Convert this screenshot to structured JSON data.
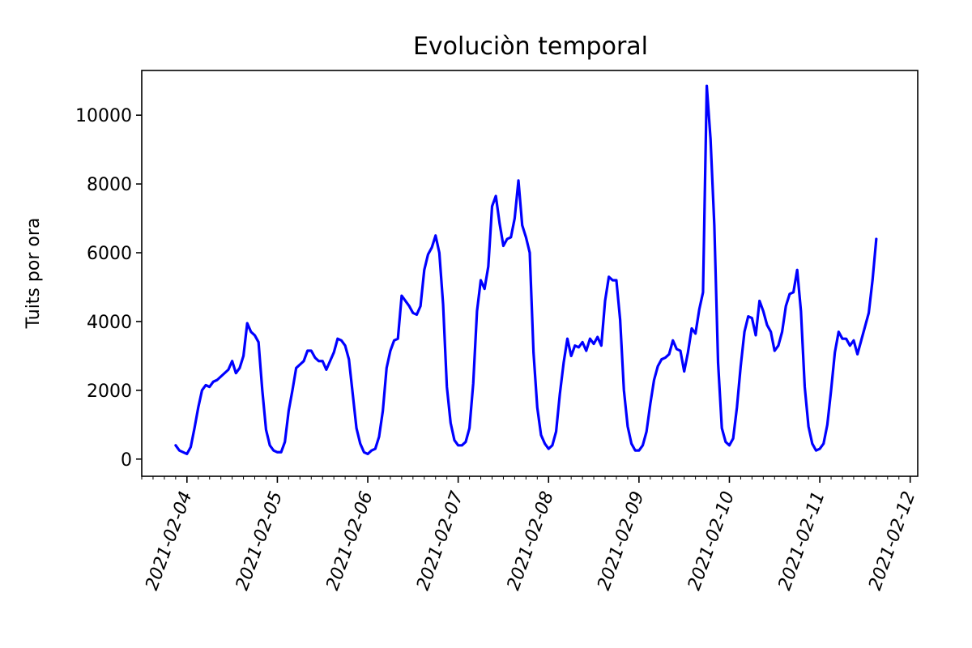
{
  "chart_data": {
    "type": "line",
    "title": "Evoluciòn temporal",
    "xlabel": "",
    "ylabel": "Tuits por ora",
    "x_start": "2021-02-03T21:00",
    "x_step_hours": 1,
    "xlim": [
      "2021-02-03T12:00",
      "2021-02-12T02:00"
    ],
    "ylim": [
      -500,
      11300
    ],
    "x_ticks": [
      "2021-02-04",
      "2021-02-05",
      "2021-02-06",
      "2021-02-07",
      "2021-02-08",
      "2021-02-09",
      "2021-02-10",
      "2021-02-11",
      "2021-02-12"
    ],
    "y_ticks": [
      0,
      2000,
      4000,
      6000,
      8000,
      10000
    ],
    "grid": false,
    "line_color": "#0000ff",
    "series": [
      {
        "values": [
          400,
          250,
          200,
          150,
          350,
          900,
          1500,
          2000,
          2150,
          2100,
          2250,
          2300,
          2400,
          2500,
          2600,
          2850,
          2500,
          2650,
          3000,
          3950,
          3700,
          3600,
          3400,
          2000,
          850,
          400,
          250,
          200,
          200,
          500,
          1400,
          2000,
          2650,
          2750,
          2850,
          3150,
          3150,
          2950,
          2850,
          2850,
          2600,
          2850,
          3100,
          3500,
          3450,
          3300,
          2900,
          1900,
          900,
          450,
          200,
          150,
          250,
          300,
          650,
          1400,
          2650,
          3150,
          3450,
          3500,
          4750,
          4600,
          4450,
          4250,
          4200,
          4450,
          5500,
          5950,
          6150,
          6500,
          6000,
          4500,
          2100,
          1050,
          550,
          400,
          400,
          500,
          900,
          2200,
          4300,
          5200,
          4950,
          5600,
          7350,
          7650,
          6850,
          6200,
          6400,
          6450,
          7000,
          8100,
          6800,
          6450,
          6000,
          3100,
          1500,
          700,
          450,
          300,
          400,
          800,
          1900,
          2800,
          3500,
          3000,
          3300,
          3250,
          3400,
          3150,
          3500,
          3350,
          3550,
          3300,
          4600,
          5300,
          5200,
          5200,
          4050,
          2000,
          950,
          450,
          250,
          250,
          400,
          800,
          1600,
          2300,
          2700,
          2900,
          2950,
          3050,
          3450,
          3200,
          3150,
          2550,
          3100,
          3800,
          3650,
          4350,
          4850,
          10850,
          9300,
          6800,
          2800,
          900,
          500,
          400,
          600,
          1500,
          2700,
          3700,
          4150,
          4100,
          3600,
          4600,
          4300,
          3900,
          3700,
          3150,
          3300,
          3700,
          4450,
          4800,
          4850,
          5500,
          4300,
          2100,
          950,
          450,
          250,
          300,
          450,
          1000,
          2000,
          3100,
          3700,
          3500,
          3500,
          3300,
          3450,
          3050,
          3450,
          3850,
          4250,
          5200,
          6400
        ]
      }
    ]
  }
}
